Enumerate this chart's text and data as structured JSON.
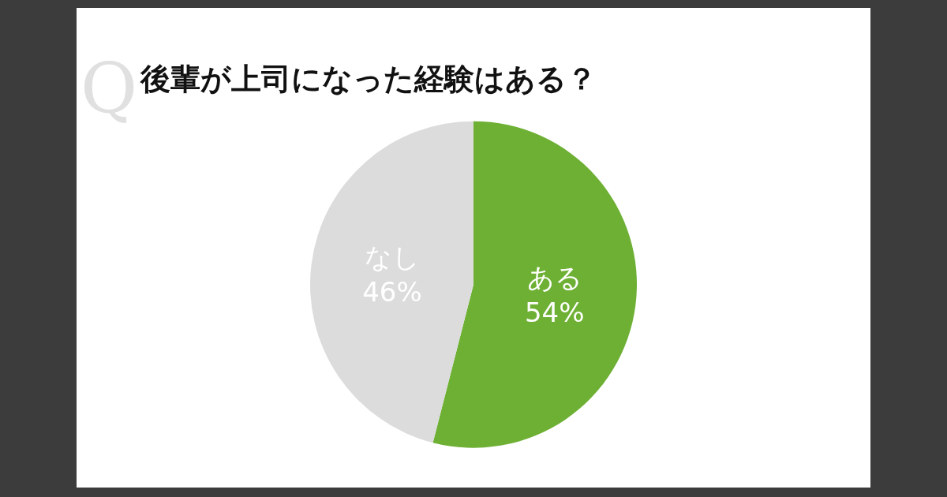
{
  "chart_data": {
    "type": "pie",
    "title": "後輩が上司になった経験はある？",
    "annotations": [
      "Q"
    ],
    "categories": [
      "ある",
      "なし"
    ],
    "values": [
      54,
      46
    ],
    "value_labels": [
      "54%",
      "46%"
    ],
    "colors": [
      "#6db033",
      "#dcdcdc"
    ],
    "legend": false
  }
}
